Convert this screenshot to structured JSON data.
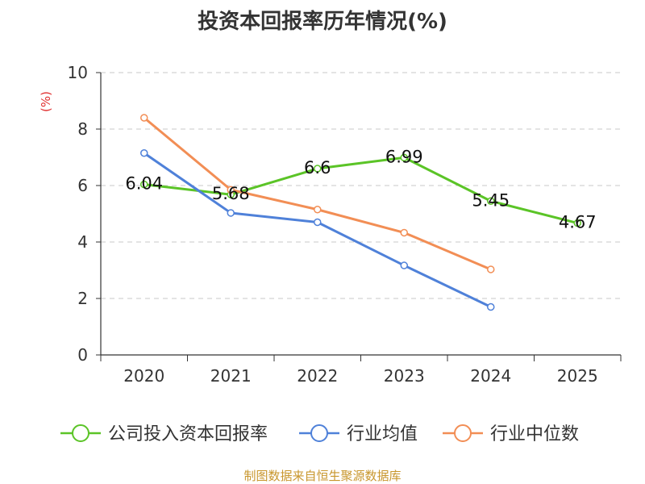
{
  "chart_data": {
    "type": "line",
    "title": "投资本回报率历年情况(%)",
    "ylabel": "(%)",
    "xlabel": "",
    "categories": [
      "2020",
      "2021",
      "2022",
      "2023",
      "2024",
      "2025"
    ],
    "ylim": [
      0,
      10
    ],
    "yticks": [
      "0",
      "2",
      "4",
      "6",
      "8",
      "10"
    ],
    "grid": true,
    "legend_position": "bottom",
    "series": [
      {
        "name": "公司投入资本回报率",
        "color": "#5bc427",
        "values": [
          6.04,
          5.68,
          6.6,
          6.99,
          5.45,
          4.67
        ],
        "labels": [
          "6.04",
          "5.68",
          "6.6",
          "6.99",
          "5.45",
          "4.67"
        ]
      },
      {
        "name": "行业均值",
        "color": "#4f81d9",
        "values": [
          7.15,
          5.03,
          4.7,
          3.17,
          1.7,
          null
        ]
      },
      {
        "name": "行业中位数",
        "color": "#f28e55",
        "values": [
          8.4,
          5.85,
          5.15,
          4.33,
          3.03,
          null
        ]
      }
    ]
  },
  "footer": {
    "source": "制图数据来自恒生聚源数据库"
  }
}
